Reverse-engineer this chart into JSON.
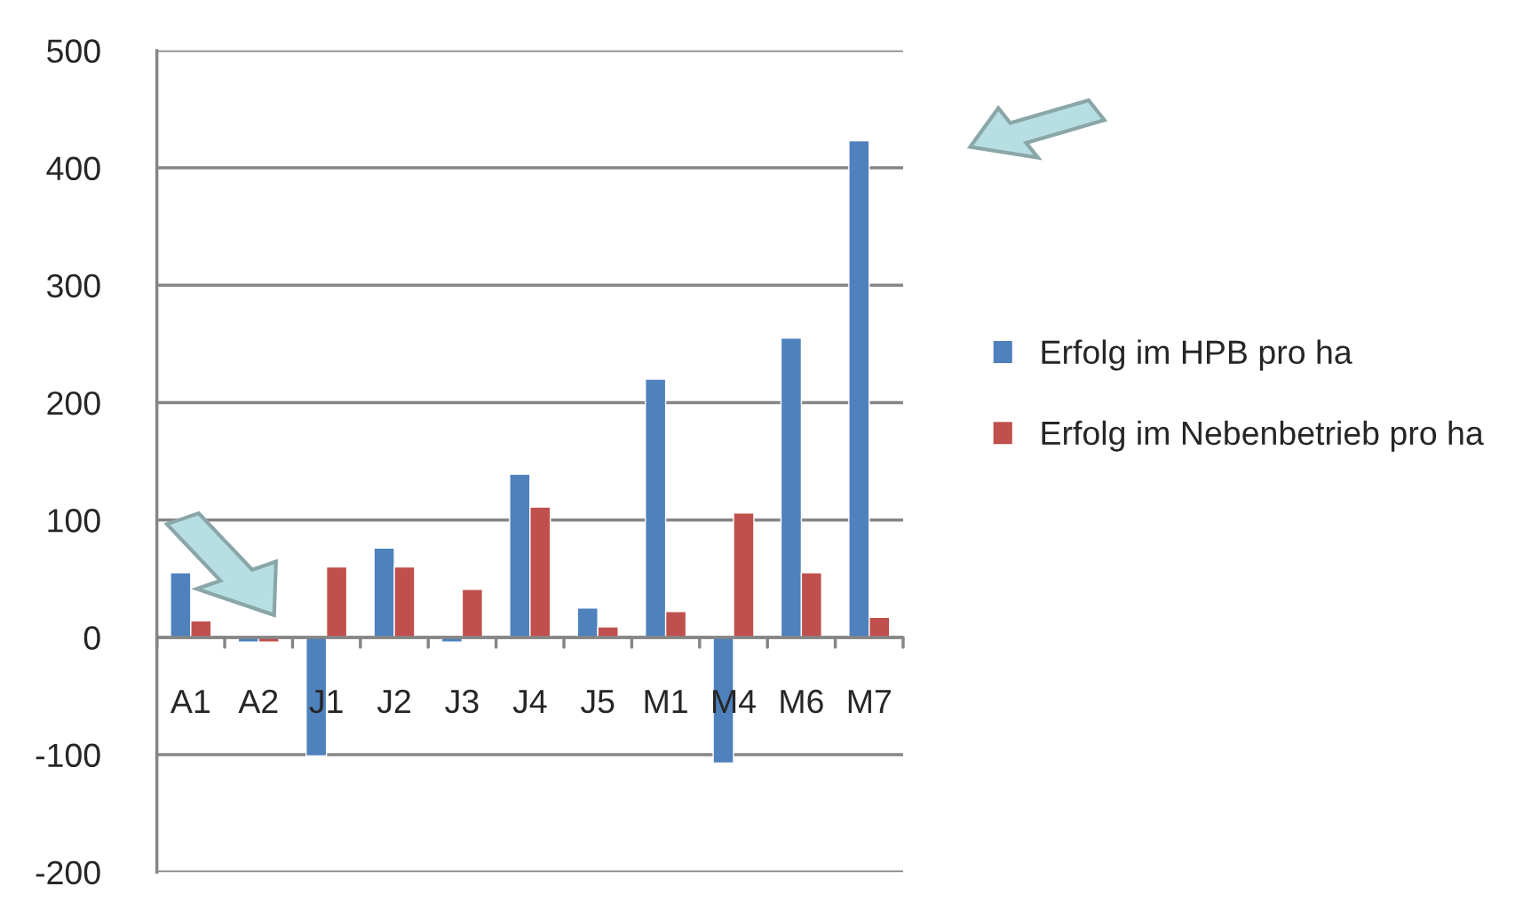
{
  "chart_data": {
    "type": "bar",
    "categories": [
      "A1",
      "A2",
      "J1",
      "J2",
      "J3",
      "J4",
      "J5",
      "M1",
      "M4",
      "M6",
      "M7"
    ],
    "series": [
      {
        "name": "Erfolg im HPB pro ha",
        "color": "#4f81bd",
        "values": [
          55,
          -4,
          -101,
          76,
          -4,
          139,
          25,
          220,
          -107,
          255,
          423
        ]
      },
      {
        "name": "Erfolg im Nebenbetrieb pro ha",
        "color": "#c0504d",
        "values": [
          14,
          -4,
          60,
          60,
          41,
          111,
          9,
          22,
          106,
          55,
          17
        ]
      }
    ],
    "ylim": [
      -200,
      500
    ],
    "yticks": [
      -200,
      -100,
      0,
      100,
      200,
      300,
      400,
      500
    ],
    "grid": "y",
    "legend": "right"
  }
}
